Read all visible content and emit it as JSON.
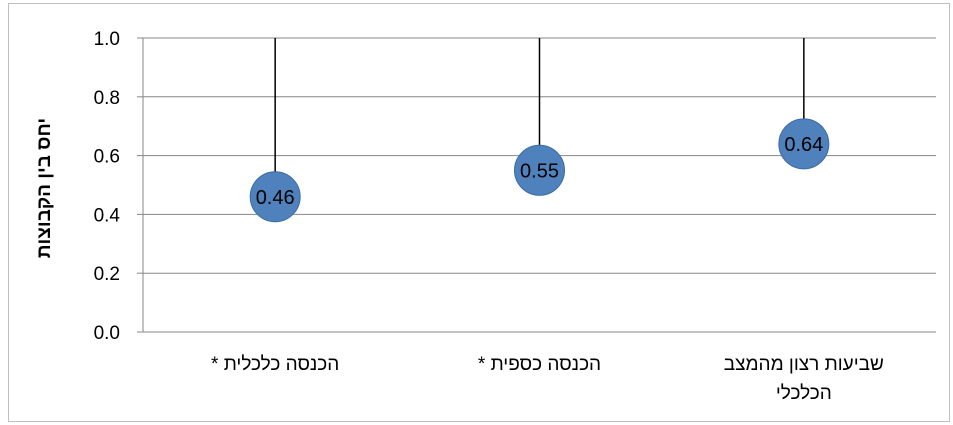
{
  "chart_data": {
    "type": "scatter",
    "title": "",
    "ylabel": "יחס בין הקבוצות",
    "xlabel": "",
    "ylim": [
      0,
      1
    ],
    "yticks": [
      "0.0",
      "0.2",
      "0.4",
      "0.6",
      "0.8",
      "1.0"
    ],
    "categories": [
      [
        "הכנסה כלכלית *"
      ],
      [
        "הכנסה כספית *"
      ],
      [
        "שביעות רצון מהמצב",
        "הכלכלי"
      ]
    ],
    "values": [
      0.46,
      0.55,
      0.64
    ],
    "data_labels": [
      "0.46",
      "0.55",
      "0.64"
    ],
    "upper_bounds": [
      1.0,
      1.0,
      1.0
    ],
    "grid": true,
    "legend": "none",
    "colors": {
      "marker": "#4f81bd",
      "marker_edge": "#3a6ba5",
      "gridline": "#878787",
      "error_line": "#000000"
    }
  }
}
